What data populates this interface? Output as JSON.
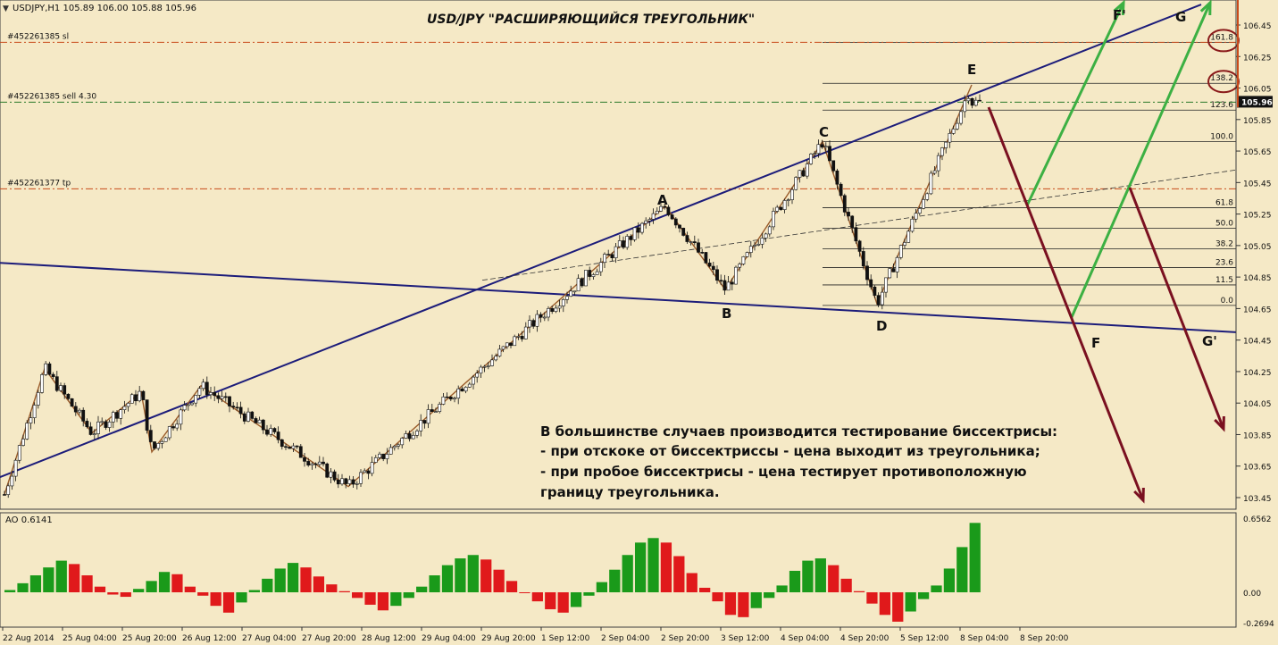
{
  "window": {
    "symbol_line": "USDJPY,H1  105.89 106.00 105.88 105.96",
    "ao_line": "AO 0.6141"
  },
  "colors": {
    "background": "#f5e9c6",
    "bull": "#1a9a1a",
    "bear": "#e0191b",
    "trendline": "#1c1c7a",
    "zigzag": "#9a5b2a",
    "arrow_green": "#3cb043",
    "arrow_red": "#7a1020",
    "order_line": "#c84a1a",
    "sell_line": "#2b7a2b"
  },
  "annotation": {
    "title": "USD/JPY  \"РАСШИРЯЮЩИЙСЯ  ТРЕУГОЛЬНИК\"",
    "text_lines": [
      "В большинстве случаев производится тестирование биссектрисы:",
      "- при отскоке от биссектриссы - цена выходит из треугольника;",
      "- при пробое биссектрисы - цена тестирует противоположную",
      "границу треугольника."
    ]
  },
  "order_lines": [
    {
      "label": "#452261385 sl",
      "price": 106.34
    },
    {
      "label": "#452261385 sell 4.30",
      "price": 105.96
    },
    {
      "label": "#452261377 tp",
      "price": 105.41
    }
  ],
  "points": [
    "A",
    "B",
    "C",
    "D",
    "E",
    "F",
    "F'",
    "G",
    "G'"
  ],
  "chart_data": {
    "type": "candlestick",
    "symbol": "USDJPY,H1",
    "ohlc_last": {
      "open": 105.89,
      "high": 106.0,
      "low": 105.88,
      "close": 105.96
    },
    "current_price": "105.96",
    "price_axis": {
      "ylim": [
        103.41,
        106.56
      ],
      "ticks": [
        "106.45",
        "106.25",
        "106.05",
        "105.85",
        "105.65",
        "105.45",
        "105.25",
        "105.05",
        "104.85",
        "104.65",
        "104.45",
        "104.25",
        "104.05",
        "103.85",
        "103.65",
        "103.45"
      ]
    },
    "time_axis": [
      "22 Aug 2014",
      "25 Aug 04:00",
      "25 Aug 20:00",
      "26 Aug 12:00",
      "27 Aug 04:00",
      "27 Aug 20:00",
      "28 Aug 12:00",
      "29 Aug 04:00",
      "29 Aug 20:00",
      "1 Sep 12:00",
      "2 Sep 04:00",
      "2 Sep 20:00",
      "3 Sep 12:00",
      "4 Sep 04:00",
      "4 Sep 20:00",
      "5 Sep 12:00",
      "8 Sep 04:00",
      "8 Sep 20:00"
    ],
    "zigzag_path": [
      103.47,
      104.27,
      103.86,
      104.12,
      103.74,
      104.16,
      103.52,
      105.3,
      104.77,
      105.71,
      104.68,
      106.07
    ],
    "fibonacci_levels": [
      {
        "label": "161.8",
        "price": 106.34
      },
      {
        "label": "138.2",
        "price": 106.08
      },
      {
        "label": "123.6",
        "price": 105.91
      },
      {
        "label": "100.0",
        "price": 105.71
      },
      {
        "label": "61.8",
        "price": 105.29
      },
      {
        "label": "50.0",
        "price": 105.16
      },
      {
        "label": "38.2",
        "price": 105.03
      },
      {
        "label": "23.6",
        "price": 104.91
      },
      {
        "label": "11.5",
        "price": 104.8
      },
      {
        "label": "0.0",
        "price": 104.67
      }
    ],
    "ao": {
      "name": "AO",
      "current": "0.6141",
      "ylim": [
        -0.3,
        0.7
      ],
      "ticks": [
        "0.6562",
        "0.00",
        "-0.2694"
      ],
      "values": [
        0.02,
        0.08,
        0.15,
        0.22,
        0.28,
        0.25,
        0.15,
        0.05,
        -0.02,
        -0.04,
        0.03,
        0.1,
        0.18,
        0.16,
        0.05,
        -0.03,
        -0.12,
        -0.18,
        -0.09,
        0.02,
        0.12,
        0.21,
        0.26,
        0.22,
        0.14,
        0.07,
        0.01,
        -0.05,
        -0.11,
        -0.16,
        -0.12,
        -0.05,
        0.05,
        0.15,
        0.24,
        0.3,
        0.33,
        0.29,
        0.2,
        0.1,
        0.0,
        -0.08,
        -0.15,
        -0.18,
        -0.13,
        -0.03,
        0.09,
        0.2,
        0.33,
        0.44,
        0.48,
        0.44,
        0.32,
        0.17,
        0.04,
        -0.08,
        -0.2,
        -0.22,
        -0.14,
        -0.05,
        0.06,
        0.19,
        0.28,
        0.3,
        0.24,
        0.12,
        0.01,
        -0.1,
        -0.2,
        -0.26,
        -0.17,
        -0.06,
        0.06,
        0.21,
        0.4,
        0.6141
      ]
    }
  }
}
